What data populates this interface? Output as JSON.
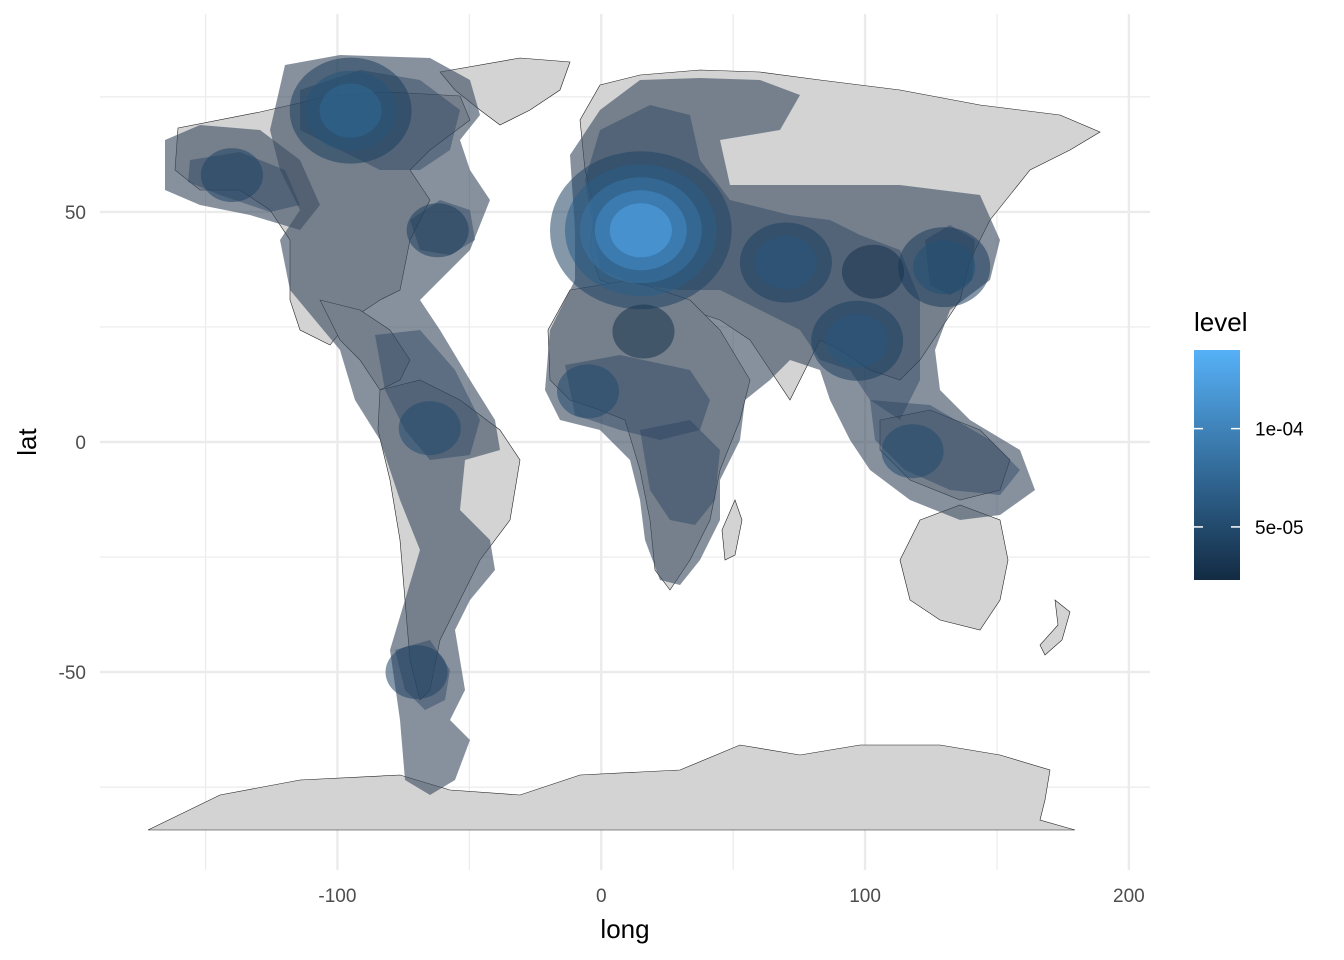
{
  "chart_data": {
    "type": "heatmap",
    "subtype": "density contour map over world map",
    "xlabel": "long",
    "ylabel": "lat",
    "xlim": [
      -190,
      208
    ],
    "ylim": [
      -93,
      93
    ],
    "x_ticks": [
      -100,
      0,
      100,
      200
    ],
    "x_tick_labels": [
      "-100",
      "0",
      "100",
      "200"
    ],
    "x_minor_grid": [
      -150,
      -50,
      50,
      150
    ],
    "y_ticks": [
      -50,
      0,
      50
    ],
    "y_tick_labels": [
      "-50",
      "0",
      "50"
    ],
    "y_minor_grid": [
      -75,
      -25,
      25,
      75
    ],
    "grid": true,
    "legend": {
      "title": "level",
      "placement": "right",
      "range": [
        2.3e-05,
        0.00014
      ],
      "ticks": [
        5e-05,
        0.0001
      ],
      "tick_labels": [
        "5e-05",
        "1e-04"
      ],
      "low_color": "#132b43",
      "high_color": "#56b1f7"
    },
    "land_color": "#d3d3d3",
    "density_region_color": "#3d4e63",
    "density_hotspots": [
      {
        "long": 15,
        "lat": 46,
        "level": 0.00013
      },
      {
        "long": -95,
        "lat": 72,
        "level": 7.5e-05
      },
      {
        "long": 70,
        "lat": 39,
        "level": 6e-05
      },
      {
        "long": 97,
        "lat": 22,
        "level": 6e-05
      },
      {
        "long": 130,
        "lat": 38,
        "level": 5.5e-05
      },
      {
        "long": -65,
        "lat": 3,
        "level": 5e-05
      },
      {
        "long": -5,
        "lat": 11,
        "level": 5e-05
      },
      {
        "long": 118,
        "lat": -2,
        "level": 5e-05
      },
      {
        "long": -70,
        "lat": -50,
        "level": 4.5e-05
      },
      {
        "long": -140,
        "lat": 58,
        "level": 4.5e-05
      },
      {
        "long": -62,
        "lat": 46,
        "level": 4e-05
      },
      {
        "long": 103,
        "lat": 37,
        "level": 3e-05
      },
      {
        "long": 16,
        "lat": 24,
        "level": 3e-05
      }
    ]
  }
}
